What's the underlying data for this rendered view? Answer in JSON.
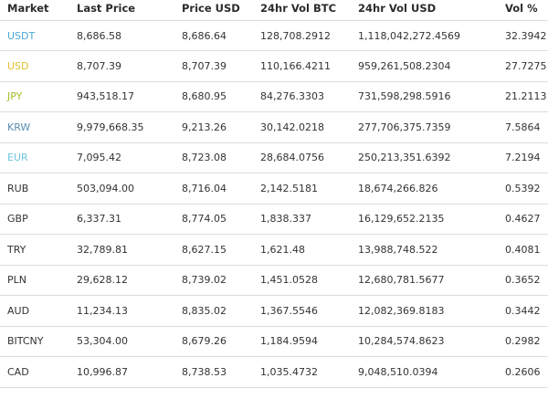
{
  "table": {
    "headers": {
      "market": "Market",
      "last_price": "Last Price",
      "price_usd": "Price USD",
      "vol_btc": "24hr Vol BTC",
      "vol_usd": "24hr Vol USD",
      "vol_pct": "Vol %"
    },
    "rows": [
      {
        "market": "USDT",
        "market_color": "#4aa8d8",
        "last_price": "8,686.58",
        "price_usd": "8,686.64",
        "vol_btc": "128,708.2912",
        "vol_usd": "1,118,042,272.4569",
        "vol_pct": "32.3942"
      },
      {
        "market": "USD",
        "market_color": "#e0c12e",
        "last_price": "8,707.39",
        "price_usd": "8,707.39",
        "vol_btc": "110,166.4211",
        "vol_usd": "959,261,508.2304",
        "vol_pct": "27.7275"
      },
      {
        "market": "JPY",
        "market_color": "#a8bf2c",
        "last_price": "943,518.17",
        "price_usd": "8,680.95",
        "vol_btc": "84,276.3303",
        "vol_usd": "731,598,298.5916",
        "vol_pct": "21.2113"
      },
      {
        "market": "KRW",
        "market_color": "#5b8fb2",
        "last_price": "9,979,668.35",
        "price_usd": "9,213.26",
        "vol_btc": "30,142.0218",
        "vol_usd": "277,706,375.7359",
        "vol_pct": "7.5864"
      },
      {
        "market": "EUR",
        "market_color": "#6fc6df",
        "last_price": "7,095.42",
        "price_usd": "8,723.08",
        "vol_btc": "28,684.0756",
        "vol_usd": "250,213,351.6392",
        "vol_pct": "7.2194"
      },
      {
        "market": "RUB",
        "market_color": "#333333",
        "last_price": "503,094.00",
        "price_usd": "8,716.04",
        "vol_btc": "2,142.5181",
        "vol_usd": "18,674,266.826",
        "vol_pct": "0.5392"
      },
      {
        "market": "GBP",
        "market_color": "#333333",
        "last_price": "6,337.31",
        "price_usd": "8,774.05",
        "vol_btc": "1,838.337",
        "vol_usd": "16,129,652.2135",
        "vol_pct": "0.4627"
      },
      {
        "market": "TRY",
        "market_color": "#333333",
        "last_price": "32,789.81",
        "price_usd": "8,627.15",
        "vol_btc": "1,621.48",
        "vol_usd": "13,988,748.522",
        "vol_pct": "0.4081"
      },
      {
        "market": "PLN",
        "market_color": "#333333",
        "last_price": "29,628.12",
        "price_usd": "8,739.02",
        "vol_btc": "1,451.0528",
        "vol_usd": "12,680,781.5677",
        "vol_pct": "0.3652"
      },
      {
        "market": "AUD",
        "market_color": "#333333",
        "last_price": "11,234.13",
        "price_usd": "8,835.02",
        "vol_btc": "1,367.5546",
        "vol_usd": "12,082,369.8183",
        "vol_pct": "0.3442"
      },
      {
        "market": "BITCNY",
        "market_color": "#333333",
        "last_price": "53,304.00",
        "price_usd": "8,679.26",
        "vol_btc": "1,184.9594",
        "vol_usd": "10,284,574.8623",
        "vol_pct": "0.2982"
      },
      {
        "market": "CAD",
        "market_color": "#333333",
        "last_price": "10,996.87",
        "price_usd": "8,738.53",
        "vol_btc": "1,035.4732",
        "vol_usd": "9,048,510.0394",
        "vol_pct": "0.2606"
      }
    ]
  }
}
